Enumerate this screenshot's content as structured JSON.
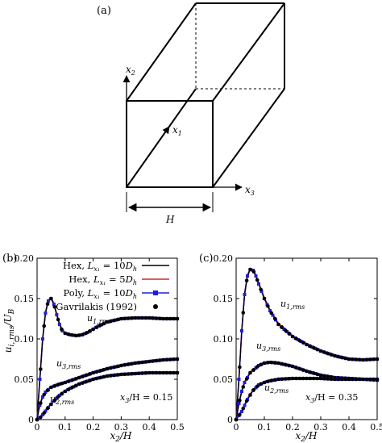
{
  "diagram": {
    "panel_label": "(a)",
    "axis_x1": "x",
    "axis_x1_sub": "1",
    "axis_x2": "x",
    "axis_x2_sub": "2",
    "axis_x3": "x",
    "axis_x3_sub": "3",
    "width_label": "H"
  },
  "colors": {
    "black": "#000000",
    "red": "#d62728",
    "blue": "#1f1fd6"
  },
  "chart_data": [
    {
      "type": "line",
      "panel_label": "(b)",
      "xlabel": "x2/H",
      "ylabel": "ui,rms/UB",
      "xlim": [
        0,
        0.5
      ],
      "ylim": [
        0,
        0.2
      ],
      "xticks": [
        "0",
        "0.1",
        "0.2",
        "0.3",
        "0.4",
        "0.5"
      ],
      "yticks": [
        "0",
        "0.05",
        "0.10",
        "0.15",
        "0.20"
      ],
      "annotation": "x3/H = 0.15",
      "legend": [
        "Hex, Lx1 = 10Dh",
        "Hex, Lx1 = 5Dh",
        "Poly, Lx1 = 10Dh",
        "Gavrilakis (1992)"
      ],
      "legend_position": "top-right",
      "curve_labels": [
        {
          "text": "u1,rms",
          "x": 0.18,
          "y": 0.1065
        },
        {
          "text": "u3,rms",
          "x": 0.085,
          "y": 0.063
        },
        {
          "text": "u2,rms",
          "x": 0.06,
          "y": 0.022
        }
      ],
      "series": [
        {
          "component": "u1",
          "x": [
            0,
            0.01,
            0.02,
            0.03,
            0.04,
            0.05,
            0.06,
            0.07,
            0.08,
            0.09,
            0.1,
            0.12,
            0.14,
            0.16,
            0.18,
            0.2,
            0.22,
            0.25,
            0.3,
            0.35,
            0.4,
            0.45,
            0.5
          ],
          "y": [
            0,
            0.05,
            0.1,
            0.132,
            0.147,
            0.15,
            0.143,
            0.13,
            0.118,
            0.11,
            0.107,
            0.105,
            0.104,
            0.105,
            0.108,
            0.112,
            0.116,
            0.121,
            0.125,
            0.126,
            0.126,
            0.125,
            0.125
          ]
        },
        {
          "component": "u3",
          "x": [
            0,
            0.005,
            0.01,
            0.02,
            0.03,
            0.05,
            0.08,
            0.1,
            0.15,
            0.2,
            0.25,
            0.3,
            0.35,
            0.4,
            0.45,
            0.5
          ],
          "y": [
            0,
            0.01,
            0.018,
            0.028,
            0.034,
            0.04,
            0.044,
            0.046,
            0.052,
            0.058,
            0.063,
            0.067,
            0.07,
            0.072,
            0.074,
            0.075
          ]
        },
        {
          "component": "u2",
          "x": [
            0,
            0.01,
            0.02,
            0.04,
            0.06,
            0.08,
            0.1,
            0.12,
            0.15,
            0.2,
            0.25,
            0.3,
            0.35,
            0.4,
            0.45,
            0.5
          ],
          "y": [
            0,
            0.002,
            0.006,
            0.015,
            0.023,
            0.03,
            0.035,
            0.039,
            0.044,
            0.05,
            0.054,
            0.056,
            0.057,
            0.058,
            0.058,
            0.058
          ]
        }
      ]
    },
    {
      "type": "line",
      "panel_label": "(c)",
      "xlabel": "x2/H",
      "ylabel": "",
      "xlim": [
        0,
        0.5
      ],
      "ylim": [
        0,
        0.2
      ],
      "xticks": [
        "0",
        "0.1",
        "0.2",
        "0.3",
        "0.4",
        "0.5"
      ],
      "yticks": [
        "0",
        "0.05",
        "0.10",
        "0.15",
        "0.20"
      ],
      "annotation": "x3/H = 0.35",
      "curve_labels": [
        {
          "text": "u1,rms",
          "x": 0.2,
          "y": 0.121
        },
        {
          "text": "u3,rms",
          "x": 0.1,
          "y": 0.079
        },
        {
          "text": "u2,rms",
          "x": 0.13,
          "y": 0.035
        }
      ],
      "series": [
        {
          "component": "u1",
          "x": [
            0,
            0.01,
            0.02,
            0.03,
            0.04,
            0.05,
            0.06,
            0.07,
            0.08,
            0.1,
            0.12,
            0.15,
            0.2,
            0.25,
            0.3,
            0.35,
            0.4,
            0.45,
            0.5
          ],
          "y": [
            0,
            0.05,
            0.11,
            0.155,
            0.178,
            0.186,
            0.185,
            0.178,
            0.168,
            0.15,
            0.135,
            0.118,
            0.103,
            0.093,
            0.085,
            0.079,
            0.075,
            0.074,
            0.075
          ]
        },
        {
          "component": "u3",
          "x": [
            0,
            0.01,
            0.02,
            0.03,
            0.05,
            0.08,
            0.1,
            0.12,
            0.15,
            0.2,
            0.25,
            0.3,
            0.35,
            0.4,
            0.45,
            0.5
          ],
          "y": [
            0,
            0.02,
            0.035,
            0.046,
            0.058,
            0.067,
            0.07,
            0.071,
            0.07,
            0.066,
            0.06,
            0.055,
            0.052,
            0.051,
            0.05,
            0.049
          ]
        },
        {
          "component": "u2",
          "x": [
            0,
            0.02,
            0.04,
            0.06,
            0.08,
            0.1,
            0.12,
            0.15,
            0.2,
            0.25,
            0.3,
            0.35,
            0.4,
            0.45,
            0.5
          ],
          "y": [
            0,
            0.01,
            0.025,
            0.036,
            0.043,
            0.046,
            0.048,
            0.05,
            0.051,
            0.051,
            0.051,
            0.05,
            0.05,
            0.05,
            0.05
          ]
        }
      ]
    }
  ]
}
